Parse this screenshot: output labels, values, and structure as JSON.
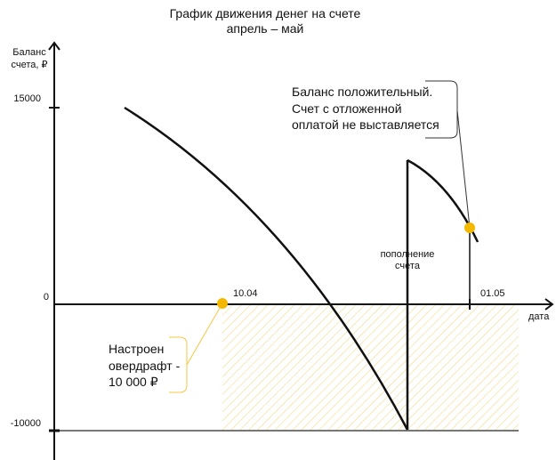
{
  "title": [
    "График движения денег на счете",
    "апрель – май"
  ],
  "y_axis": {
    "label": [
      "Баланс",
      "счета, ₽"
    ],
    "ticks": [
      "15000",
      "0",
      "-10000"
    ]
  },
  "x_axis": {
    "label": "дата",
    "ticks": [
      "10.04",
      "01.05"
    ]
  },
  "annotations": {
    "topup": [
      "пополнение",
      "счета"
    ],
    "positive": [
      "Баланс положительный.",
      "Счет с отложенной",
      "оплатой не выставляется"
    ],
    "overdraft": [
      "Настроен",
      "овердрафт -",
      "10 000 ₽"
    ]
  },
  "colors": {
    "accent": "#f5b800",
    "hatch": "#f3d98a",
    "line": "#111111",
    "limit": "#777777"
  }
}
